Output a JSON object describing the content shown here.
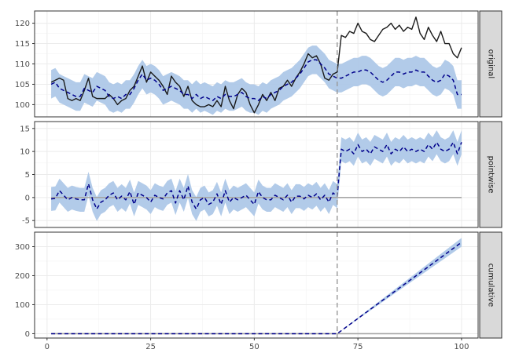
{
  "chart_data": {
    "type": "line",
    "facets": [
      "original",
      "pointwise",
      "cumulative"
    ],
    "intervention_x": 70,
    "x": {
      "ticks": [
        0,
        25,
        50,
        75,
        100
      ],
      "range": [
        -3,
        104
      ],
      "data_range": [
        1,
        100
      ]
    },
    "colors": {
      "actual": "#1a1a1a",
      "prediction": "#00008b",
      "band": "#aec8e8",
      "zero_line": "#a6a6a6",
      "intervention": "#999999",
      "grid_major": "#ebebeb",
      "strip_fill": "#d9d9d9"
    },
    "panels": [
      {
        "name": "original",
        "ylim": [
          97,
          123
        ],
        "yticks": [
          100,
          105,
          110,
          115,
          120
        ],
        "actual": [
          [
            1,
            105.5
          ],
          [
            2,
            106
          ],
          [
            3,
            106.5
          ],
          [
            4,
            106
          ],
          [
            5,
            101.5
          ],
          [
            6,
            101
          ],
          [
            7,
            101.5
          ],
          [
            8,
            101
          ],
          [
            9,
            103.5
          ],
          [
            10,
            106.5
          ],
          [
            11,
            102
          ],
          [
            12,
            101.5
          ],
          [
            13,
            101.5
          ],
          [
            14,
            101.5
          ],
          [
            15,
            102.5
          ],
          [
            16,
            101.5
          ],
          [
            17,
            100
          ],
          [
            18,
            101
          ],
          [
            19,
            101.5
          ],
          [
            20,
            103.5
          ],
          [
            21,
            104.5
          ],
          [
            22,
            107
          ],
          [
            23,
            109.5
          ],
          [
            24,
            105.5
          ],
          [
            25,
            108
          ],
          [
            26,
            107
          ],
          [
            27,
            106
          ],
          [
            28,
            104.5
          ],
          [
            29,
            102.5
          ],
          [
            30,
            107
          ],
          [
            31,
            105.5
          ],
          [
            32,
            104.5
          ],
          [
            33,
            102
          ],
          [
            34,
            104.5
          ],
          [
            35,
            101
          ],
          [
            36,
            100
          ],
          [
            37,
            99.5
          ],
          [
            38,
            99.5
          ],
          [
            39,
            100
          ],
          [
            40,
            99.5
          ],
          [
            41,
            101
          ],
          [
            42,
            99.5
          ],
          [
            43,
            104.5
          ],
          [
            44,
            101
          ],
          [
            45,
            99
          ],
          [
            46,
            102.5
          ],
          [
            47,
            104
          ],
          [
            48,
            103
          ],
          [
            49,
            100
          ],
          [
            50,
            98
          ],
          [
            51,
            100
          ],
          [
            52,
            102.5
          ],
          [
            53,
            101
          ],
          [
            54,
            103
          ],
          [
            55,
            101
          ],
          [
            56,
            104
          ],
          [
            57,
            104.5
          ],
          [
            58,
            106
          ],
          [
            59,
            104.5
          ],
          [
            60,
            106.5
          ],
          [
            61,
            108
          ],
          [
            62,
            110
          ],
          [
            63,
            112.5
          ],
          [
            64,
            111.5
          ],
          [
            65,
            112
          ],
          [
            66,
            110
          ],
          [
            67,
            106.5
          ],
          [
            68,
            106
          ],
          [
            69,
            107.5
          ],
          [
            70,
            108
          ],
          [
            71,
            117
          ],
          [
            72,
            116.5
          ],
          [
            73,
            118
          ],
          [
            74,
            117.5
          ],
          [
            75,
            120
          ],
          [
            76,
            118
          ],
          [
            77,
            117.5
          ],
          [
            78,
            116
          ],
          [
            79,
            115.5
          ],
          [
            80,
            117
          ],
          [
            81,
            118.5
          ],
          [
            82,
            119
          ],
          [
            83,
            120
          ],
          [
            84,
            118.5
          ],
          [
            85,
            119.5
          ],
          [
            86,
            118
          ],
          [
            87,
            119
          ],
          [
            88,
            118.5
          ],
          [
            89,
            121.5
          ],
          [
            90,
            117.5
          ],
          [
            91,
            116
          ],
          [
            92,
            119
          ],
          [
            93,
            117
          ],
          [
            94,
            115.5
          ],
          [
            95,
            118
          ],
          [
            96,
            115
          ],
          [
            97,
            115
          ],
          [
            98,
            112.5
          ],
          [
            99,
            111.5
          ],
          [
            100,
            114
          ]
        ],
        "prediction": [
          [
            1,
            105
          ],
          [
            2,
            105.5
          ],
          [
            3,
            104
          ],
          [
            4,
            103.5
          ],
          [
            5,
            103
          ],
          [
            6,
            102.5
          ],
          [
            7,
            102
          ],
          [
            8,
            102
          ],
          [
            9,
            104
          ],
          [
            10,
            103.5
          ],
          [
            11,
            103
          ],
          [
            12,
            104.5
          ],
          [
            13,
            104
          ],
          [
            14,
            103.5
          ],
          [
            15,
            102
          ],
          [
            16,
            101.5
          ],
          [
            17,
            102
          ],
          [
            18,
            101.5
          ],
          [
            19,
            102.5
          ],
          [
            20,
            102.5
          ],
          [
            21,
            104
          ],
          [
            22,
            106
          ],
          [
            23,
            107.5
          ],
          [
            24,
            106
          ],
          [
            25,
            106.5
          ],
          [
            26,
            106
          ],
          [
            27,
            105
          ],
          [
            28,
            103.5
          ],
          [
            29,
            104
          ],
          [
            30,
            104.5
          ],
          [
            31,
            104
          ],
          [
            32,
            103.5
          ],
          [
            33,
            102.5
          ],
          [
            34,
            102.5
          ],
          [
            35,
            101.5
          ],
          [
            36,
            102.5
          ],
          [
            37,
            101.5
          ],
          [
            38,
            102
          ],
          [
            39,
            101.5
          ],
          [
            40,
            101
          ],
          [
            41,
            102
          ],
          [
            42,
            101.5
          ],
          [
            43,
            102.5
          ],
          [
            44,
            102
          ],
          [
            45,
            102
          ],
          [
            46,
            102.5
          ],
          [
            47,
            103
          ],
          [
            48,
            102
          ],
          [
            49,
            101.5
          ],
          [
            50,
            101.5
          ],
          [
            51,
            101
          ],
          [
            52,
            102
          ],
          [
            53,
            101.5
          ],
          [
            54,
            102.5
          ],
          [
            55,
            103
          ],
          [
            56,
            103.5
          ],
          [
            57,
            104.5
          ],
          [
            58,
            105
          ],
          [
            59,
            105.5
          ],
          [
            60,
            106.5
          ],
          [
            61,
            107.5
          ],
          [
            62,
            109
          ],
          [
            63,
            110.5
          ],
          [
            64,
            111
          ],
          [
            65,
            111
          ],
          [
            66,
            110
          ],
          [
            67,
            109
          ],
          [
            68,
            107.5
          ],
          [
            69,
            107
          ],
          [
            70,
            106.5
          ],
          [
            71,
            106.5
          ],
          [
            72,
            107
          ],
          [
            73,
            107.5
          ],
          [
            74,
            108
          ],
          [
            75,
            108
          ],
          [
            76,
            108.5
          ],
          [
            77,
            108.5
          ],
          [
            78,
            108
          ],
          [
            79,
            107
          ],
          [
            80,
            106
          ],
          [
            81,
            105.5
          ],
          [
            82,
            106
          ],
          [
            83,
            107
          ],
          [
            84,
            108
          ],
          [
            85,
            108
          ],
          [
            86,
            107.5
          ],
          [
            87,
            108
          ],
          [
            88,
            108
          ],
          [
            89,
            108.5
          ],
          [
            90,
            108
          ],
          [
            91,
            108
          ],
          [
            92,
            107
          ],
          [
            93,
            106
          ],
          [
            94,
            105.5
          ],
          [
            95,
            106
          ],
          [
            96,
            107.5
          ],
          [
            97,
            107
          ],
          [
            98,
            106
          ],
          [
            99,
            102.5
          ],
          [
            100,
            102.5
          ]
        ],
        "band_halfwidth": 3.5
      },
      {
        "name": "pointwise",
        "ylim": [
          -6.5,
          16.5
        ],
        "yticks": [
          -5,
          0,
          5,
          10,
          15
        ],
        "zero": true,
        "prediction": [
          [
            1,
            -0.3
          ],
          [
            2,
            -0.2
          ],
          [
            3,
            1.5
          ],
          [
            4,
            0.5
          ],
          [
            5,
            -0.5
          ],
          [
            6,
            0
          ],
          [
            7,
            -0.3
          ],
          [
            8,
            -0.5
          ],
          [
            9,
            -0.5
          ],
          [
            10,
            3
          ],
          [
            11,
            -0.5
          ],
          [
            12,
            -2.5
          ],
          [
            13,
            -1
          ],
          [
            14,
            -0.5
          ],
          [
            15,
            0.5
          ],
          [
            16,
            1
          ],
          [
            17,
            -0.5
          ],
          [
            18,
            0.3
          ],
          [
            19,
            -0.5
          ],
          [
            20,
            1.3
          ],
          [
            21,
            -1.5
          ],
          [
            22,
            1
          ],
          [
            23,
            0.5
          ],
          [
            24,
            0
          ],
          [
            25,
            -1
          ],
          [
            26,
            0.5
          ],
          [
            27,
            0
          ],
          [
            28,
            -0.3
          ],
          [
            29,
            1
          ],
          [
            30,
            1.5
          ],
          [
            31,
            -1.2
          ],
          [
            32,
            1.5
          ],
          [
            33,
            -0.5
          ],
          [
            34,
            2.5
          ],
          [
            35,
            -1
          ],
          [
            36,
            -2.5
          ],
          [
            37,
            -0.5
          ],
          [
            38,
            0
          ],
          [
            39,
            -1.5
          ],
          [
            40,
            -1
          ],
          [
            41,
            0.8
          ],
          [
            42,
            -1.5
          ],
          [
            43,
            1.5
          ],
          [
            44,
            -1
          ],
          [
            45,
            0
          ],
          [
            46,
            -0.5
          ],
          [
            47,
            0
          ],
          [
            48,
            0.5
          ],
          [
            49,
            -0.5
          ],
          [
            50,
            -1.5
          ],
          [
            51,
            1.3
          ],
          [
            52,
            0
          ],
          [
            53,
            -0.5
          ],
          [
            54,
            -0.5
          ],
          [
            55,
            0.5
          ],
          [
            56,
            0
          ],
          [
            57,
            -0.5
          ],
          [
            58,
            0.5
          ],
          [
            59,
            -1
          ],
          [
            60,
            0.3
          ],
          [
            61,
            0.3
          ],
          [
            62,
            -0.3
          ],
          [
            63,
            0.5
          ],
          [
            64,
            0
          ],
          [
            65,
            0.8
          ],
          [
            66,
            -0.5
          ],
          [
            67,
            0.5
          ],
          [
            68,
            -1
          ],
          [
            69,
            1
          ],
          [
            70,
            0.3
          ],
          [
            71,
            10.5
          ],
          [
            72,
            10
          ],
          [
            73,
            10.5
          ],
          [
            74,
            9.5
          ],
          [
            75,
            11.5
          ],
          [
            76,
            10
          ],
          [
            77,
            10.5
          ],
          [
            78,
            9.5
          ],
          [
            79,
            11
          ],
          [
            80,
            10.5
          ],
          [
            81,
            10
          ],
          [
            82,
            11.5
          ],
          [
            83,
            9.5
          ],
          [
            84,
            10.5
          ],
          [
            85,
            10
          ],
          [
            86,
            11
          ],
          [
            87,
            10
          ],
          [
            88,
            10.5
          ],
          [
            89,
            10
          ],
          [
            90,
            10.5
          ],
          [
            91,
            10
          ],
          [
            92,
            11.5
          ],
          [
            93,
            10.5
          ],
          [
            94,
            12
          ],
          [
            95,
            10.5
          ],
          [
            96,
            10
          ],
          [
            97,
            10.5
          ],
          [
            98,
            12
          ],
          [
            99,
            9.5
          ],
          [
            100,
            12
          ]
        ],
        "band_halfwidth": 2.6
      },
      {
        "name": "cumulative",
        "ylim": [
          -15,
          350
        ],
        "yticks": [
          0,
          100,
          200,
          300
        ],
        "zero": true,
        "prediction": [
          [
            1,
            0
          ],
          [
            70,
            0
          ],
          [
            100,
            315
          ]
        ],
        "band": [
          [
            70,
            0,
            0
          ],
          [
            100,
            300,
            330
          ]
        ]
      }
    ]
  }
}
